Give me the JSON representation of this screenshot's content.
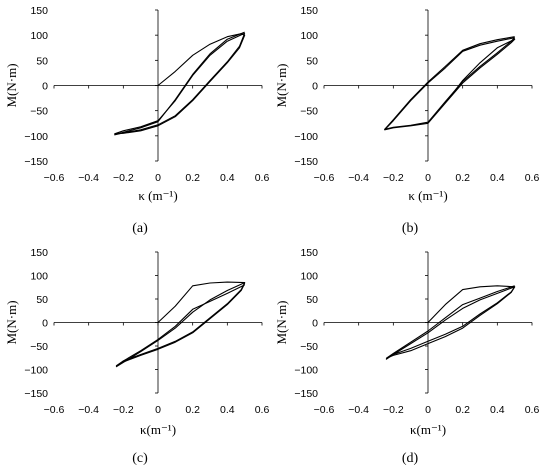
{
  "chart_data": [
    {
      "type": "line",
      "caption": "(a)",
      "xlabel": "κ (m⁻¹)",
      "ylabel": "M(N·m)",
      "xlim": [
        -0.6,
        0.6
      ],
      "ylim": [
        -150,
        150
      ],
      "xticks": [
        -0.6,
        -0.4,
        -0.2,
        0,
        0.2,
        0.4,
        0.6
      ],
      "yticks": [
        -150,
        -100,
        -50,
        0,
        50,
        100,
        150
      ],
      "xtick_labels": [
        "−0.6",
        "−0.4",
        "−0.2",
        "0",
        "0.2",
        "0.4",
        "0.6"
      ],
      "ytick_labels": [
        "−150",
        "−100",
        "−50",
        "0",
        "50",
        "100",
        "150"
      ],
      "series": [
        {
          "x": [
            0.0,
            0.1,
            0.2,
            0.3,
            0.4,
            0.48,
            0.5,
            0.47,
            0.4,
            0.3,
            0.2,
            0.1,
            0.0,
            -0.1,
            -0.2,
            -0.25,
            -0.2,
            -0.1,
            0.0,
            0.1,
            0.2,
            0.3,
            0.4,
            0.5
          ],
          "y": [
            0,
            28,
            60,
            82,
            97,
            103,
            100,
            75,
            45,
            8,
            -30,
            -62,
            -80,
            -90,
            -95,
            -96,
            -90,
            -82,
            -70,
            -30,
            20,
            60,
            88,
            104
          ]
        },
        {
          "x": [
            0.5,
            0.47,
            0.4,
            0.3,
            0.2,
            0.1,
            0.0,
            -0.1,
            -0.2,
            -0.25,
            -0.2,
            -0.1,
            0.0,
            0.1,
            0.2,
            0.3,
            0.4,
            0.5
          ],
          "y": [
            104,
            78,
            47,
            10,
            -28,
            -60,
            -78,
            -88,
            -94,
            -98,
            -93,
            -84,
            -72,
            -28,
            22,
            63,
            92,
            106
          ]
        }
      ]
    },
    {
      "type": "line",
      "caption": "(b)",
      "xlabel": "κ (m⁻¹)",
      "ylabel": "M(N·m)",
      "xlim": [
        -0.6,
        0.6
      ],
      "ylim": [
        -150,
        150
      ],
      "xticks": [
        -0.6,
        -0.4,
        -0.2,
        0,
        0.2,
        0.4,
        0.6
      ],
      "yticks": [
        -150,
        -100,
        -50,
        0,
        50,
        100,
        150
      ],
      "xtick_labels": [
        "−0.6",
        "−0.4",
        "−0.2",
        "0",
        "0.2",
        "0.4",
        "0.6"
      ],
      "ytick_labels": [
        "−150",
        "−100",
        "−50",
        "0",
        "50",
        "100",
        "150"
      ],
      "series": [
        {
          "x": [
            0.0,
            0.1,
            0.2,
            0.3,
            0.4,
            0.5,
            0.48,
            0.4,
            0.3,
            0.2,
            0.1,
            0.0,
            -0.1,
            -0.2,
            -0.25,
            -0.2,
            -0.1,
            0.0,
            0.1,
            0.2,
            0.3,
            0.4,
            0.5
          ],
          "y": [
            -75,
            -35,
            10,
            45,
            75,
            92,
            85,
            62,
            35,
            5,
            -35,
            -75,
            -80,
            -84,
            -88,
            -70,
            -30,
            5,
            35,
            68,
            80,
            88,
            95
          ]
        },
        {
          "x": [
            0.5,
            0.48,
            0.4,
            0.3,
            0.2,
            0.1,
            0.0,
            -0.1,
            -0.2,
            -0.25,
            -0.2,
            -0.1,
            0.0,
            0.1,
            0.2,
            0.3,
            0.4,
            0.5
          ],
          "y": [
            95,
            88,
            65,
            38,
            8,
            -32,
            -73,
            -79,
            -83,
            -87,
            -68,
            -28,
            7,
            38,
            70,
            83,
            91,
            97
          ]
        }
      ]
    },
    {
      "type": "line",
      "caption": "(c)",
      "xlabel": "κ(m⁻¹)",
      "ylabel": "M(N·m)",
      "xlim": [
        -0.6,
        0.6
      ],
      "ylim": [
        -150,
        150
      ],
      "xticks": [
        -0.6,
        -0.4,
        -0.2,
        0,
        0.2,
        0.4,
        0.6
      ],
      "yticks": [
        -150,
        -100,
        -50,
        0,
        50,
        100,
        150
      ],
      "xtick_labels": [
        "−0.6",
        "−0.4",
        "−0.2",
        "0",
        "0.2",
        "0.4",
        "0.6"
      ],
      "ytick_labels": [
        "−150",
        "−100",
        "−50",
        "0",
        "50",
        "100",
        "150"
      ],
      "series": [
        {
          "x": [
            0.0,
            0.1,
            0.2,
            0.3,
            0.4,
            0.5,
            0.48,
            0.4,
            0.3,
            0.2,
            0.1,
            0.0,
            -0.1,
            -0.2,
            -0.24,
            -0.2,
            -0.1,
            0.0,
            0.1,
            0.2,
            0.3,
            0.4,
            0.5
          ],
          "y": [
            0,
            35,
            78,
            84,
            86,
            85,
            70,
            40,
            10,
            -20,
            -40,
            -55,
            -68,
            -82,
            -94,
            -85,
            -62,
            -38,
            -12,
            22,
            48,
            68,
            85
          ]
        },
        {
          "x": [
            0.5,
            0.48,
            0.4,
            0.3,
            0.2,
            0.1,
            0.0,
            -0.1,
            -0.2,
            -0.24,
            -0.2,
            -0.1,
            0.0,
            0.1,
            0.2,
            0.3,
            0.4,
            0.5
          ],
          "y": [
            83,
            68,
            38,
            8,
            -22,
            -42,
            -57,
            -70,
            -84,
            -92,
            -82,
            -60,
            -36,
            -8,
            28,
            45,
            62,
            80
          ]
        }
      ]
    },
    {
      "type": "line",
      "caption": "(d)",
      "xlabel": "κ(m⁻¹)",
      "ylabel": "M(N·m)",
      "xlim": [
        -0.6,
        0.6
      ],
      "ylim": [
        -150,
        150
      ],
      "xticks": [
        -0.6,
        -0.4,
        -0.2,
        0,
        0.2,
        0.4,
        0.6
      ],
      "yticks": [
        -150,
        -100,
        -50,
        0,
        50,
        100,
        150
      ],
      "xtick_labels": [
        "−0.6",
        "−0.4",
        "−0.2",
        "0",
        "0.2",
        "0.4",
        "0.6"
      ],
      "ytick_labels": [
        "−150",
        "−100",
        "−50",
        "0",
        "50",
        "100",
        "150"
      ],
      "series": [
        {
          "x": [
            0.0,
            0.1,
            0.2,
            0.3,
            0.4,
            0.5,
            0.48,
            0.4,
            0.3,
            0.2,
            0.1,
            0.0,
            -0.1,
            -0.2,
            -0.24,
            -0.2,
            -0.1,
            0.0,
            0.1,
            0.2,
            0.3,
            0.4,
            0.5
          ],
          "y": [
            0,
            38,
            70,
            76,
            78,
            76,
            65,
            42,
            18,
            -8,
            -25,
            -40,
            -55,
            -68,
            -78,
            -68,
            -45,
            -22,
            5,
            30,
            48,
            62,
            76
          ]
        },
        {
          "x": [
            0.5,
            0.48,
            0.4,
            0.3,
            0.2,
            0.1,
            0.0,
            -0.1,
            -0.2,
            -0.24,
            -0.2,
            -0.1,
            0.0,
            0.1,
            0.2,
            0.3,
            0.4,
            0.5
          ],
          "y": [
            76,
            64,
            40,
            15,
            -12,
            -30,
            -45,
            -60,
            -70,
            -76,
            -66,
            -42,
            -18,
            10,
            38,
            52,
            66,
            78
          ]
        }
      ]
    }
  ]
}
